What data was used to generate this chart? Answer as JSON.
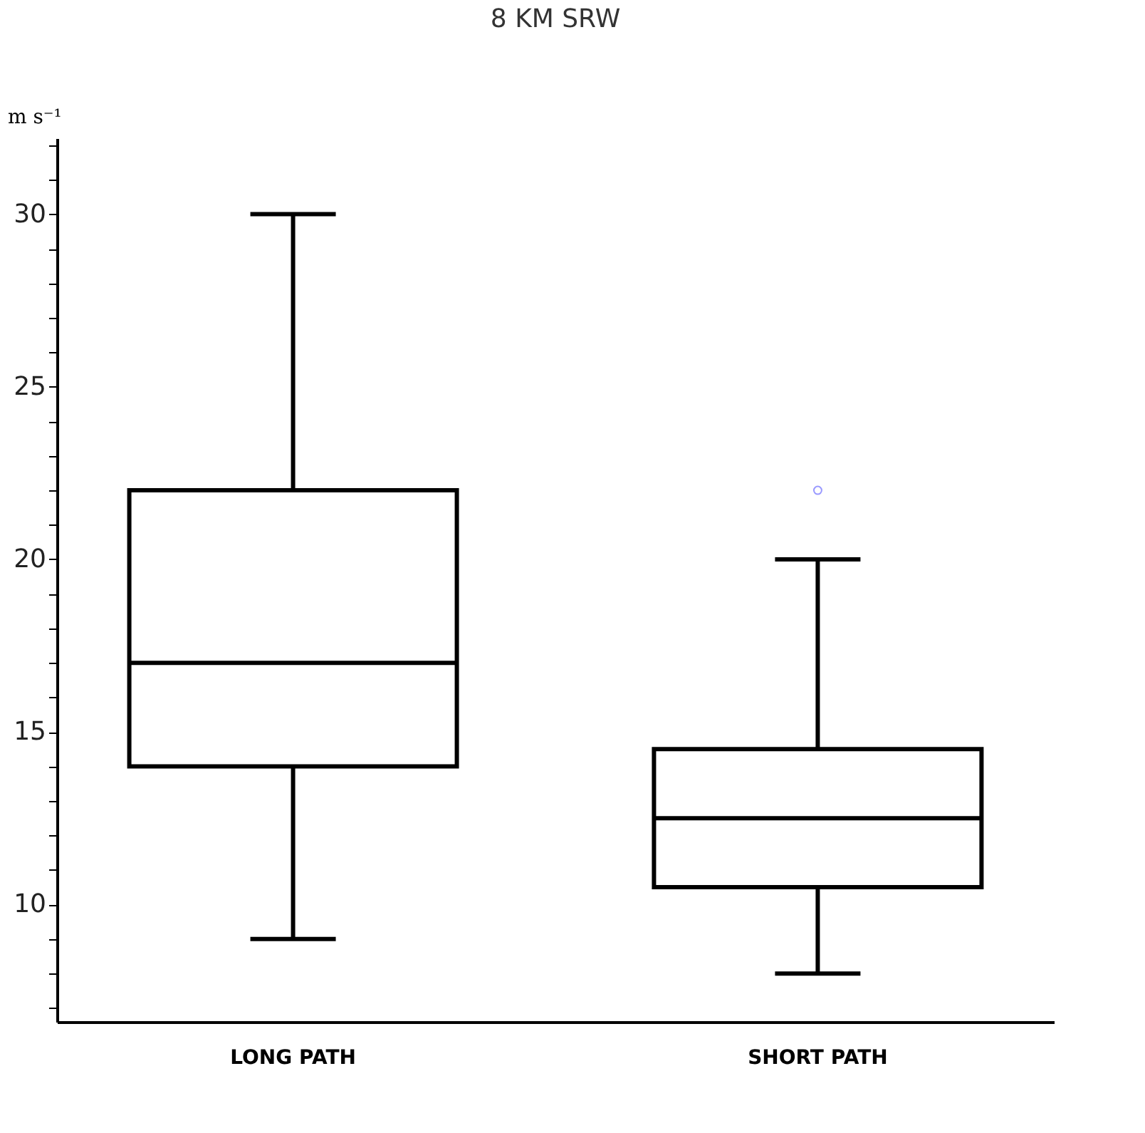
{
  "chart_data": {
    "type": "box",
    "title": "8 KM SRW",
    "ylabel": "m s⁻¹",
    "categories": [
      "LONG PATH",
      "SHORT PATH"
    ],
    "boxes": [
      {
        "low": 9,
        "q1": 14,
        "median": 17,
        "q3": 22,
        "high": 30
      },
      {
        "low": 8,
        "q1": 10.5,
        "median": 12.5,
        "q3": 14.5,
        "high": 20,
        "outliers": [
          22
        ]
      }
    ],
    "ylim": [
      6.6,
      32.2
    ],
    "yticks": [
      {
        "value": 7,
        "label": null
      },
      {
        "value": 8,
        "label": null
      },
      {
        "value": 9,
        "label": null
      },
      10,
      {
        "value": 11,
        "label": null
      },
      {
        "value": 12,
        "label": null
      },
      {
        "value": 13,
        "label": null
      },
      {
        "value": 14,
        "label": null
      },
      15,
      {
        "value": 16,
        "label": null
      },
      {
        "value": 17,
        "label": null
      },
      {
        "value": 18,
        "label": null
      },
      {
        "value": 19,
        "label": null
      },
      20,
      {
        "value": 21,
        "label": null
      },
      {
        "value": 22,
        "label": null
      },
      {
        "value": 23,
        "label": null
      },
      {
        "value": 24,
        "label": null
      },
      25,
      {
        "value": 26,
        "label": null
      },
      {
        "value": 27,
        "label": null
      },
      {
        "value": 28,
        "label": null
      },
      {
        "value": 29,
        "label": null
      },
      30,
      {
        "value": 31,
        "label": null
      },
      {
        "value": 32,
        "label": null
      }
    ],
    "grid": false
  }
}
